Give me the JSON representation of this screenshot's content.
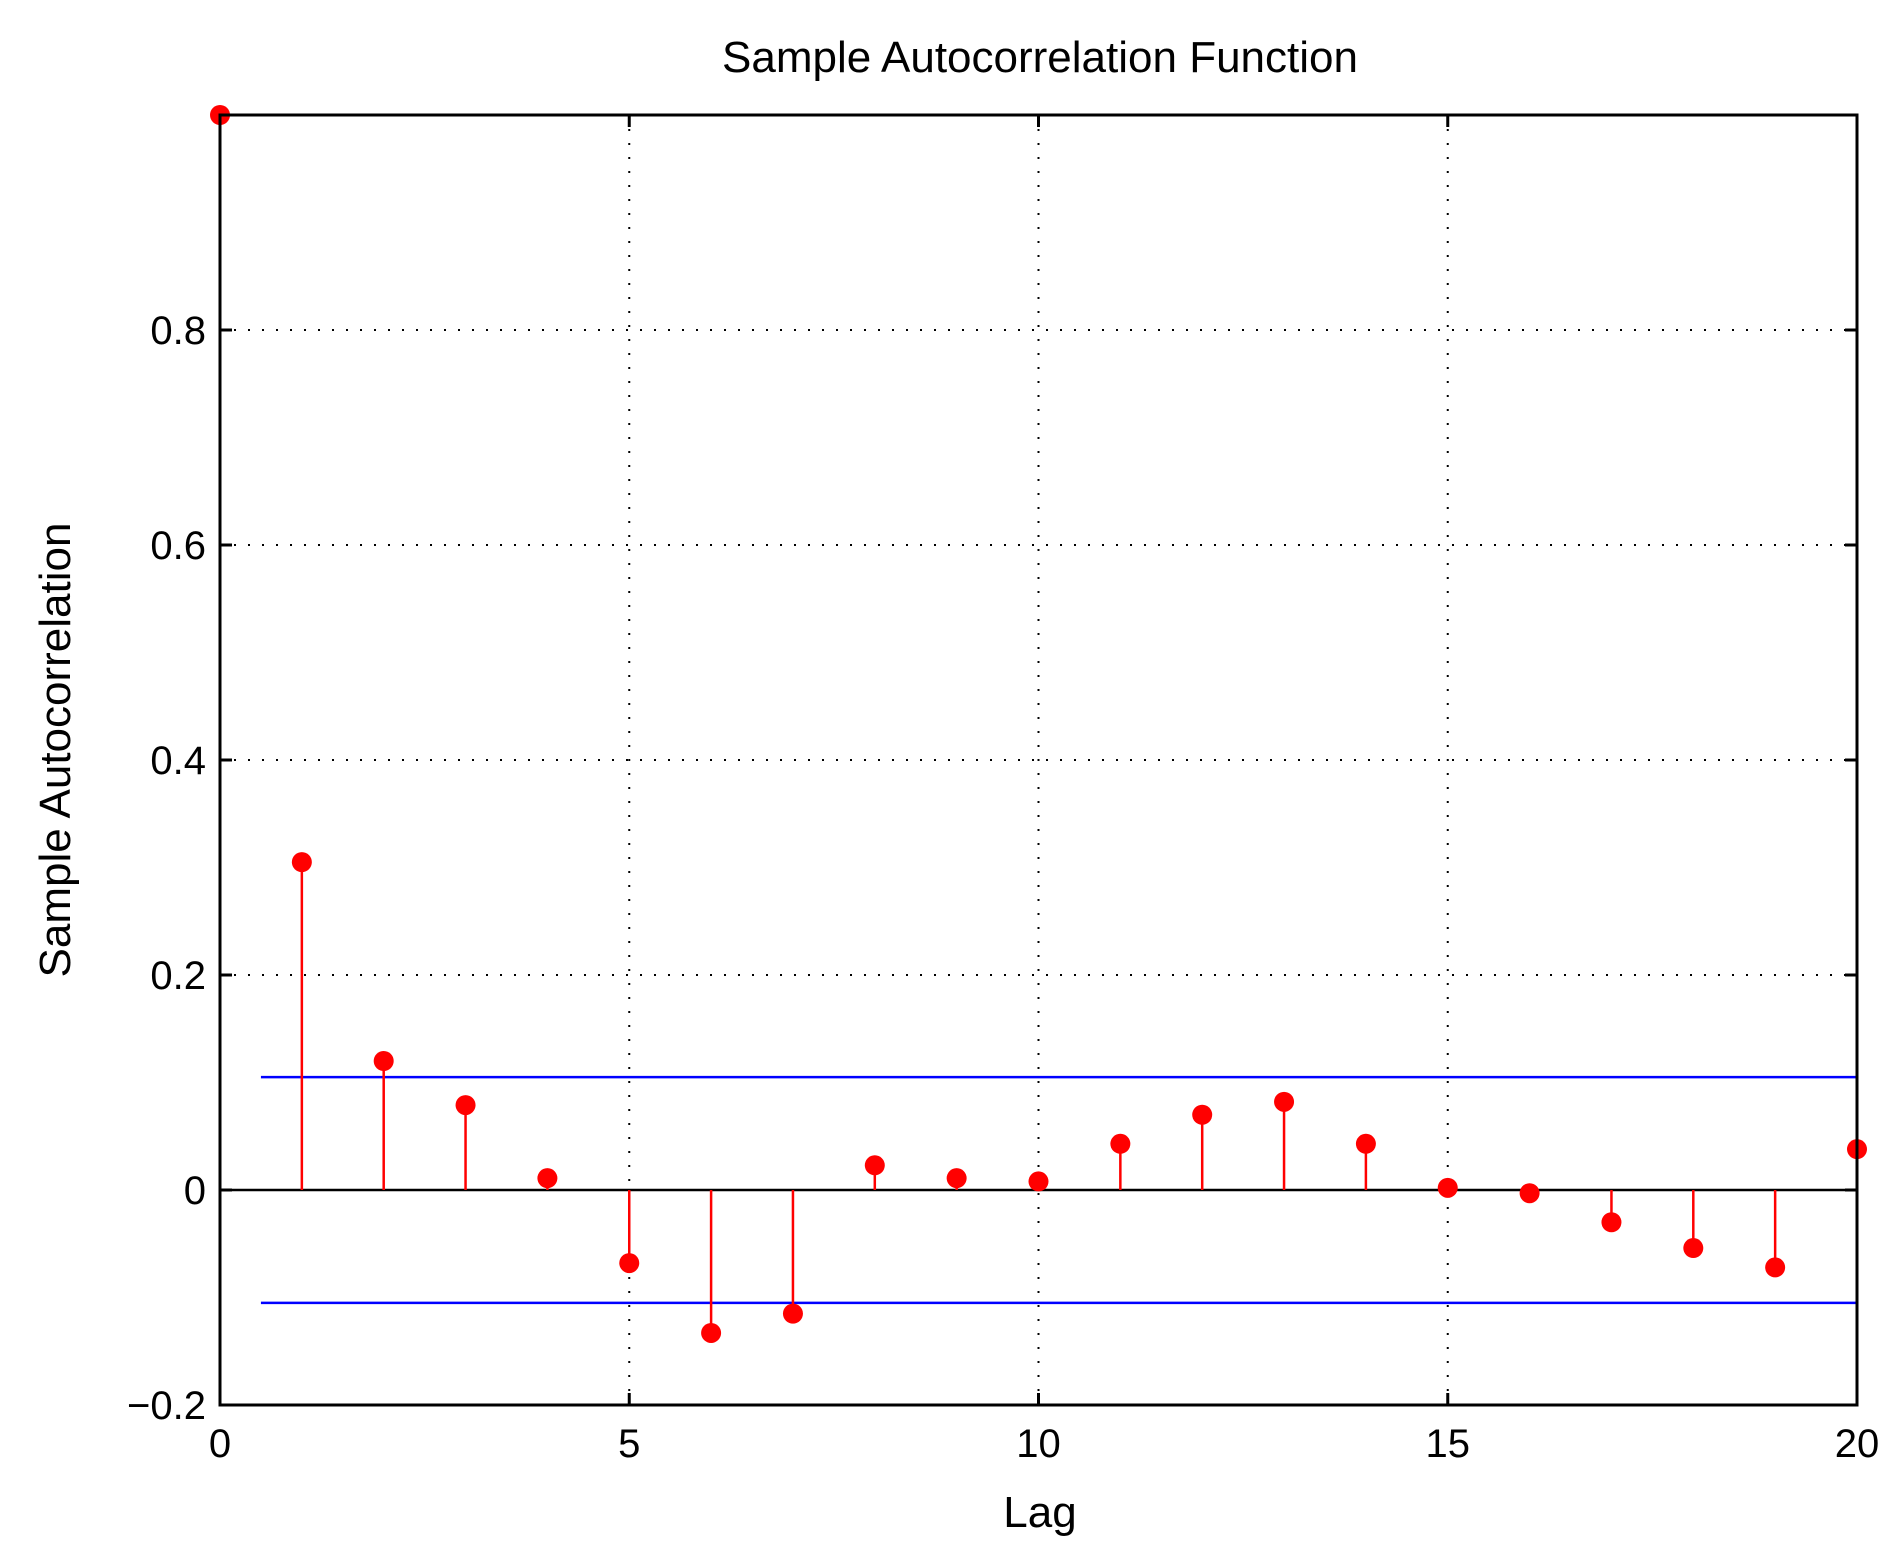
{
  "chart_data": {
    "type": "stem",
    "title": "Sample Autocorrelation Function",
    "xlabel": "Lag",
    "ylabel": "Sample Autocorrelation",
    "xlim": [
      0,
      20
    ],
    "ylim": [
      -0.2,
      1.0
    ],
    "xticks": [
      0,
      5,
      10,
      15,
      20
    ],
    "xtick_labels": [
      "0",
      "5",
      "10",
      "15",
      "20"
    ],
    "yticks": [
      -0.2,
      0,
      0.2,
      0.4,
      0.6,
      0.8
    ],
    "ytick_labels": [
      "−0.2",
      "0",
      "0.2",
      "0.4",
      "0.6",
      "0.8"
    ],
    "grid": true,
    "series": [
      {
        "x": [
          0,
          1,
          2,
          3,
          4,
          5,
          6,
          7,
          8,
          9,
          10,
          11,
          12,
          13,
          14,
          15,
          16,
          17,
          18,
          19,
          20
        ],
        "values": [
          1.0,
          0.305,
          0.12,
          0.079,
          0.011,
          -0.068,
          -0.133,
          -0.115,
          0.023,
          0.011,
          0.008,
          0.043,
          0.07,
          0.082,
          0.043,
          0.002,
          -0.003,
          -0.03,
          -0.054,
          -0.072,
          0.038
        ],
        "color": "#ff0000"
      }
    ],
    "confidence_bounds": {
      "values": [
        0.105,
        -0.105
      ],
      "x_range": [
        0.5,
        20
      ],
      "color": "#0000ff"
    },
    "zero_line_color": "#000000"
  }
}
